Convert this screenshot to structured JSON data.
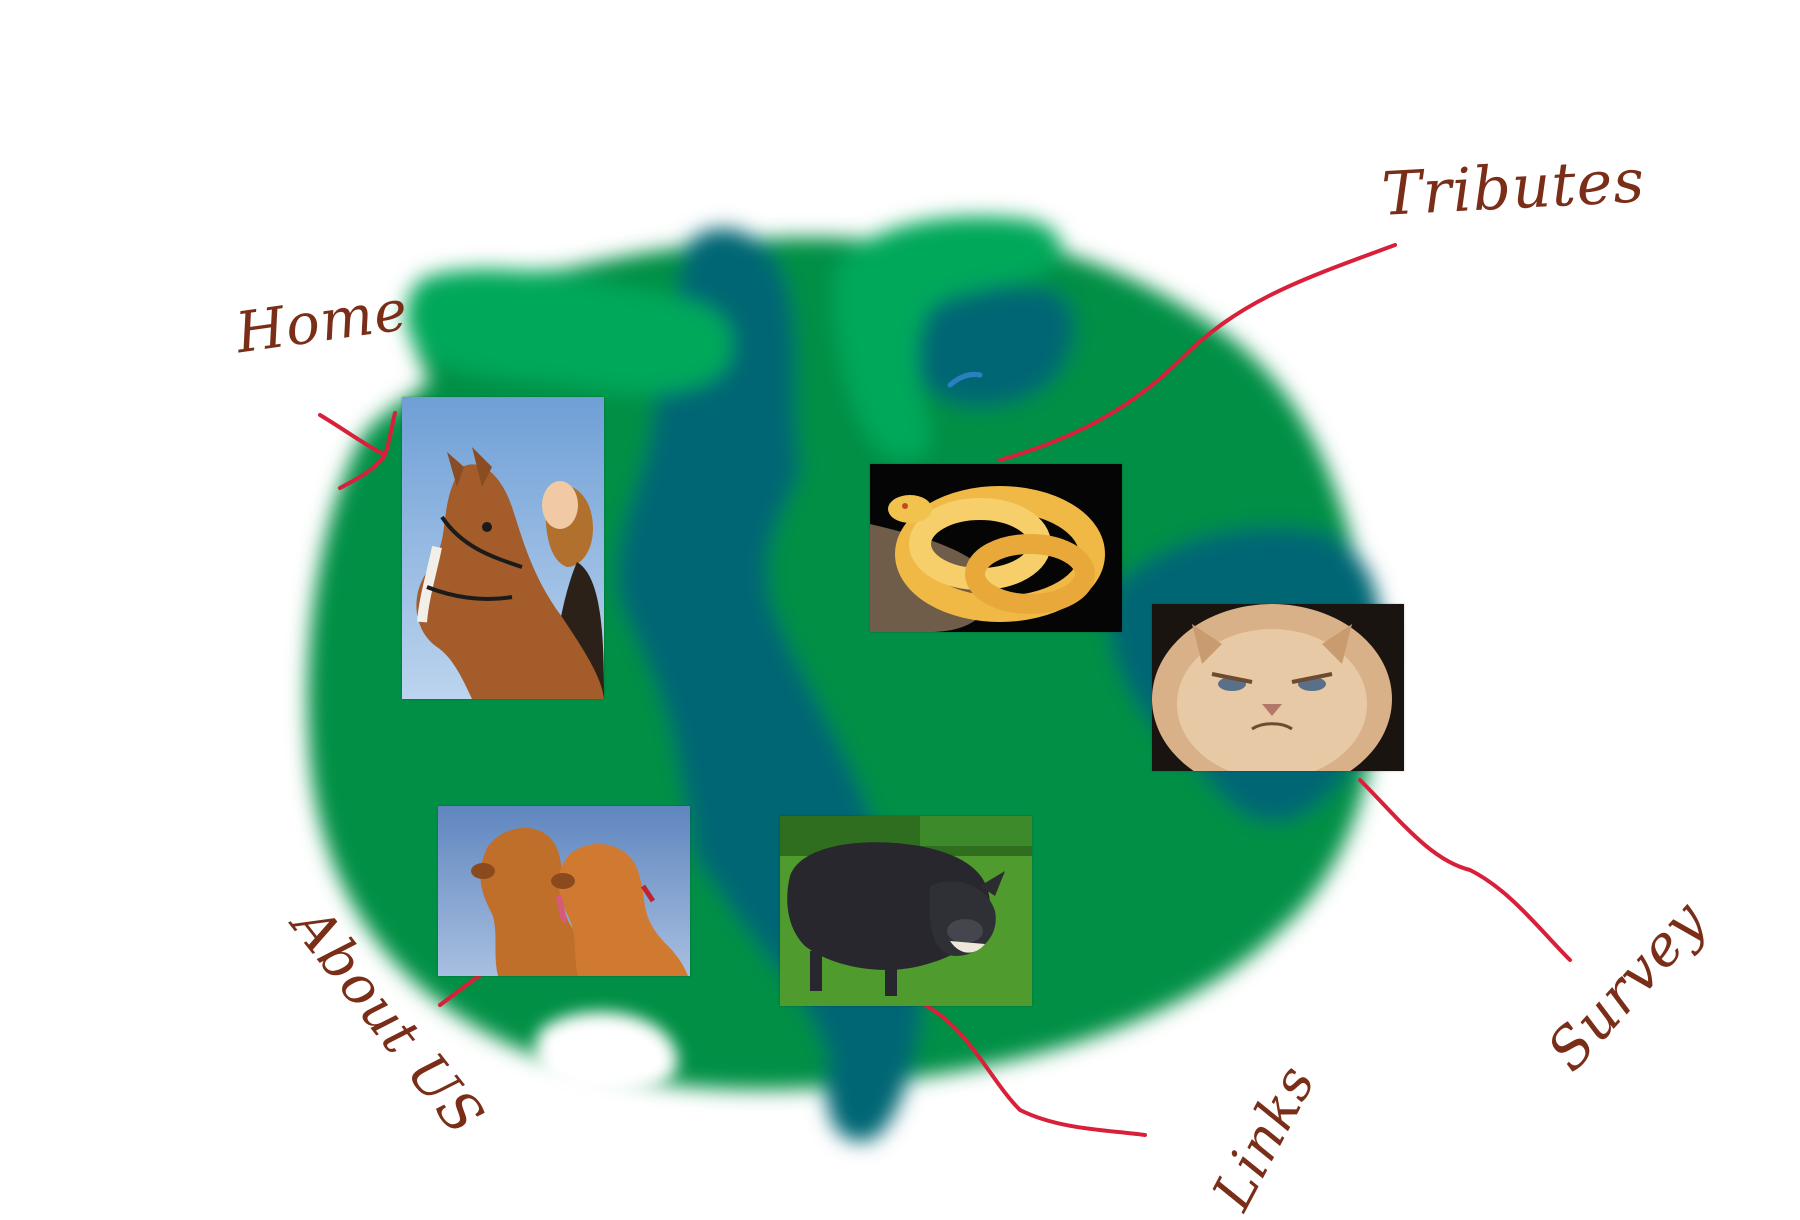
{
  "nav": {
    "home": "Home",
    "tributes": "Tributes",
    "about": "About US",
    "links": "Links",
    "survey": "Survey"
  },
  "colors": {
    "land_green": "#008f45",
    "land_light_green": "#00a85a",
    "water_teal": "#006673",
    "label_brown": "#7a2e18",
    "connector_red": "#d8203a"
  },
  "photos": [
    {
      "subject": "horse-with-woman"
    },
    {
      "subject": "albino-python"
    },
    {
      "subject": "grumpy-cat"
    },
    {
      "subject": "cocker-spaniels"
    },
    {
      "subject": "black-pig"
    }
  ]
}
